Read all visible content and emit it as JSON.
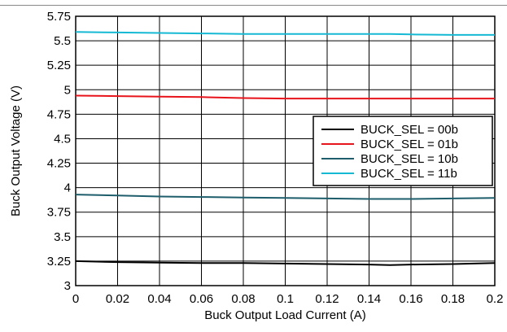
{
  "chart_data": {
    "type": "line",
    "title": "",
    "xlabel": "Buck Output Load Current (A)",
    "ylabel": "Buck Output Voltage (V)",
    "xlim": [
      0,
      0.2
    ],
    "ylim": [
      3,
      5.75
    ],
    "x_ticks": [
      "0",
      "0.02",
      "0.04",
      "0.06",
      "0.08",
      "0.1",
      "0.12",
      "0.14",
      "0.16",
      "0.18",
      "0.2"
    ],
    "y_ticks": [
      "3",
      "3.25",
      "3.5",
      "3.75",
      "4",
      "4.25",
      "4.5",
      "4.75",
      "5",
      "5.25",
      "5.5",
      "5.75"
    ],
    "grid": true,
    "legend_position": "center-right",
    "series": [
      {
        "name": "BUCK_SEL = 00b",
        "color": "#000000",
        "x": [
          0,
          0.02,
          0.04,
          0.06,
          0.08,
          0.1,
          0.12,
          0.14,
          0.15,
          0.16,
          0.18,
          0.2
        ],
        "y": [
          3.25,
          3.24,
          3.235,
          3.23,
          3.23,
          3.225,
          3.22,
          3.215,
          3.21,
          3.215,
          3.22,
          3.23
        ]
      },
      {
        "name": "BUCK_SEL = 01b",
        "color": "#e8141b",
        "x": [
          0,
          0.02,
          0.04,
          0.06,
          0.08,
          0.1,
          0.12,
          0.14,
          0.16,
          0.18,
          0.2
        ],
        "y": [
          4.94,
          4.935,
          4.93,
          4.925,
          4.915,
          4.91,
          4.91,
          4.91,
          4.91,
          4.91,
          4.91
        ]
      },
      {
        "name": "BUCK_SEL = 10b",
        "color": "#1e5d6b",
        "x": [
          0,
          0.02,
          0.04,
          0.06,
          0.08,
          0.1,
          0.12,
          0.14,
          0.15,
          0.16,
          0.18,
          0.2
        ],
        "y": [
          3.93,
          3.92,
          3.91,
          3.905,
          3.9,
          3.895,
          3.89,
          3.885,
          3.885,
          3.885,
          3.89,
          3.895
        ]
      },
      {
        "name": "BUCK_SEL = 11b",
        "color": "#16b9d4",
        "x": [
          0,
          0.02,
          0.04,
          0.06,
          0.08,
          0.1,
          0.12,
          0.14,
          0.15,
          0.16,
          0.18,
          0.2
        ],
        "y": [
          5.59,
          5.585,
          5.58,
          5.575,
          5.57,
          5.57,
          5.57,
          5.57,
          5.57,
          5.565,
          5.56,
          5.56
        ]
      }
    ]
  }
}
